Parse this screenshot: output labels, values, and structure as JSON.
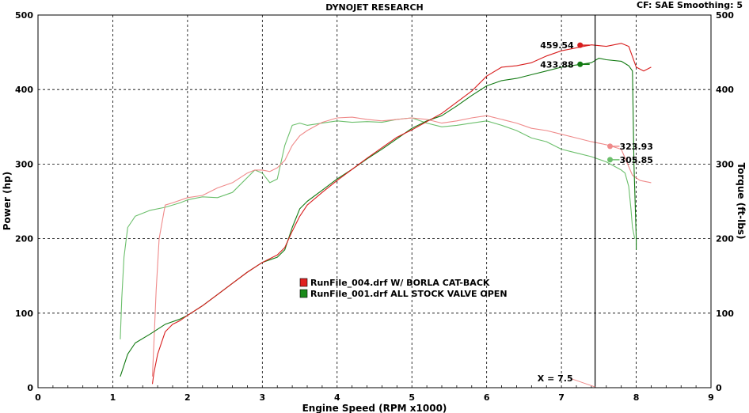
{
  "header": {
    "title": "DYNOJET RESEARCH",
    "right": "CF: SAE  Smoothing: 5"
  },
  "chart_data": {
    "type": "line",
    "title": "DYNOJET RESEARCH",
    "xlabel": "Engine Speed (RPM x1000)",
    "ylabel": "Power (hp)",
    "y2label": "Torque (ft-lbs)",
    "xlim": [
      0,
      9
    ],
    "ylim": [
      0,
      500
    ],
    "y2lim": [
      0,
      500
    ],
    "grid": true,
    "xticks": [
      "0",
      "1",
      "2",
      "3",
      "4",
      "5",
      "6",
      "7",
      "8",
      "9"
    ],
    "yticks": [
      "0",
      "100",
      "200",
      "300",
      "400",
      "500"
    ],
    "y2ticks": [
      "0",
      "100",
      "200",
      "300",
      "400",
      "500"
    ],
    "cursor": {
      "x": 7.45,
      "label": "X = 7.5"
    },
    "colors": {
      "run004_power": "#d81e1e",
      "run004_torque": "#ef8a8a",
      "run001_power": "#127a12",
      "run001_torque": "#6cbf6c"
    },
    "legend": [
      {
        "label": "RunFile_004.drf W/ BORLA CAT-BACK",
        "color": "#e02020"
      },
      {
        "label": "RunFile_001.drf ALL STOCK VALVE OPEN",
        "color": "#1a8a1a"
      }
    ],
    "series": [
      {
        "key": "run004_power",
        "legend": 0,
        "axis": "power",
        "peak_label": "459.54",
        "peak": [
          7.25,
          459.54
        ],
        "x": [
          1.53,
          1.55,
          1.6,
          1.7,
          1.8,
          1.9,
          2.0,
          2.2,
          2.4,
          2.6,
          2.8,
          3.0,
          3.2,
          3.3,
          3.4,
          3.5,
          3.6,
          3.8,
          4.0,
          4.2,
          4.4,
          4.6,
          4.8,
          5.0,
          5.2,
          5.4,
          5.6,
          5.8,
          6.0,
          6.2,
          6.4,
          6.6,
          6.8,
          7.0,
          7.2,
          7.4,
          7.6,
          7.8,
          7.9,
          8.0,
          8.1,
          8.2
        ],
        "y": [
          5,
          20,
          45,
          75,
          85,
          90,
          97,
          110,
          125,
          140,
          155,
          168,
          178,
          188,
          210,
          230,
          245,
          262,
          278,
          293,
          308,
          322,
          336,
          346,
          357,
          368,
          383,
          398,
          418,
          430,
          432,
          436,
          445,
          452,
          456,
          460,
          458,
          462,
          458,
          430,
          425,
          430
        ]
      },
      {
        "key": "run004_torque",
        "legend": 0,
        "axis": "torque",
        "peak_label": "323.93",
        "peak": [
          7.65,
          323.93
        ],
        "x": [
          1.53,
          1.55,
          1.58,
          1.62,
          1.7,
          1.8,
          2.0,
          2.2,
          2.4,
          2.6,
          2.8,
          2.9,
          3.0,
          3.1,
          3.2,
          3.3,
          3.4,
          3.5,
          3.6,
          3.8,
          4.0,
          4.2,
          4.4,
          4.6,
          4.8,
          5.0,
          5.2,
          5.4,
          5.6,
          5.8,
          6.0,
          6.2,
          6.4,
          6.6,
          6.8,
          7.0,
          7.2,
          7.4,
          7.6,
          7.8,
          7.95,
          8.05,
          8.2
        ],
        "y": [
          15,
          60,
          130,
          200,
          245,
          248,
          255,
          258,
          268,
          275,
          288,
          292,
          292,
          290,
          295,
          305,
          325,
          338,
          345,
          356,
          362,
          363,
          360,
          358,
          360,
          362,
          360,
          355,
          358,
          362,
          365,
          360,
          355,
          348,
          345,
          340,
          335,
          330,
          326,
          320,
          285,
          278,
          275
        ]
      },
      {
        "key": "run001_power",
        "legend": 1,
        "axis": "power",
        "peak_label": "433.88",
        "peak": [
          7.25,
          433.88
        ],
        "x": [
          1.1,
          1.2,
          1.3,
          1.5,
          1.7,
          1.9,
          2.0,
          2.2,
          2.4,
          2.6,
          2.8,
          3.0,
          3.2,
          3.3,
          3.4,
          3.5,
          3.6,
          3.8,
          4.0,
          4.2,
          4.4,
          4.6,
          4.8,
          5.0,
          5.2,
          5.4,
          5.6,
          5.8,
          6.0,
          6.2,
          6.4,
          6.6,
          6.8,
          7.0,
          7.2,
          7.4,
          7.5,
          7.6,
          7.8,
          7.9,
          7.95,
          7.97,
          8.0,
          8.0
        ],
        "y": [
          15,
          45,
          60,
          72,
          85,
          92,
          97,
          110,
          125,
          140,
          155,
          168,
          175,
          185,
          215,
          240,
          250,
          265,
          280,
          293,
          307,
          320,
          334,
          348,
          358,
          365,
          378,
          392,
          405,
          412,
          415,
          420,
          425,
          430,
          433,
          436,
          442,
          440,
          438,
          432,
          425,
          300,
          200,
          185
        ]
      },
      {
        "key": "run001_torque",
        "legend": 1,
        "axis": "torque",
        "peak_label": "305.85",
        "peak": [
          7.65,
          305.85
        ],
        "x": [
          1.1,
          1.12,
          1.15,
          1.2,
          1.3,
          1.5,
          1.7,
          1.9,
          2.0,
          2.2,
          2.4,
          2.6,
          2.8,
          2.9,
          3.0,
          3.1,
          3.2,
          3.3,
          3.4,
          3.5,
          3.6,
          3.8,
          4.0,
          4.2,
          4.4,
          4.6,
          4.8,
          5.0,
          5.2,
          5.4,
          5.6,
          5.8,
          6.0,
          6.2,
          6.4,
          6.6,
          6.8,
          7.0,
          7.2,
          7.4,
          7.6,
          7.8,
          7.85,
          7.9,
          7.93,
          7.95,
          7.98
        ],
        "y": [
          65,
          120,
          175,
          215,
          230,
          238,
          242,
          248,
          252,
          256,
          255,
          262,
          282,
          292,
          288,
          275,
          280,
          325,
          352,
          355,
          352,
          355,
          358,
          356,
          357,
          356,
          360,
          362,
          355,
          350,
          352,
          355,
          358,
          352,
          345,
          335,
          330,
          320,
          315,
          310,
          303,
          292,
          288,
          270,
          240,
          215,
          200
        ]
      }
    ]
  }
}
